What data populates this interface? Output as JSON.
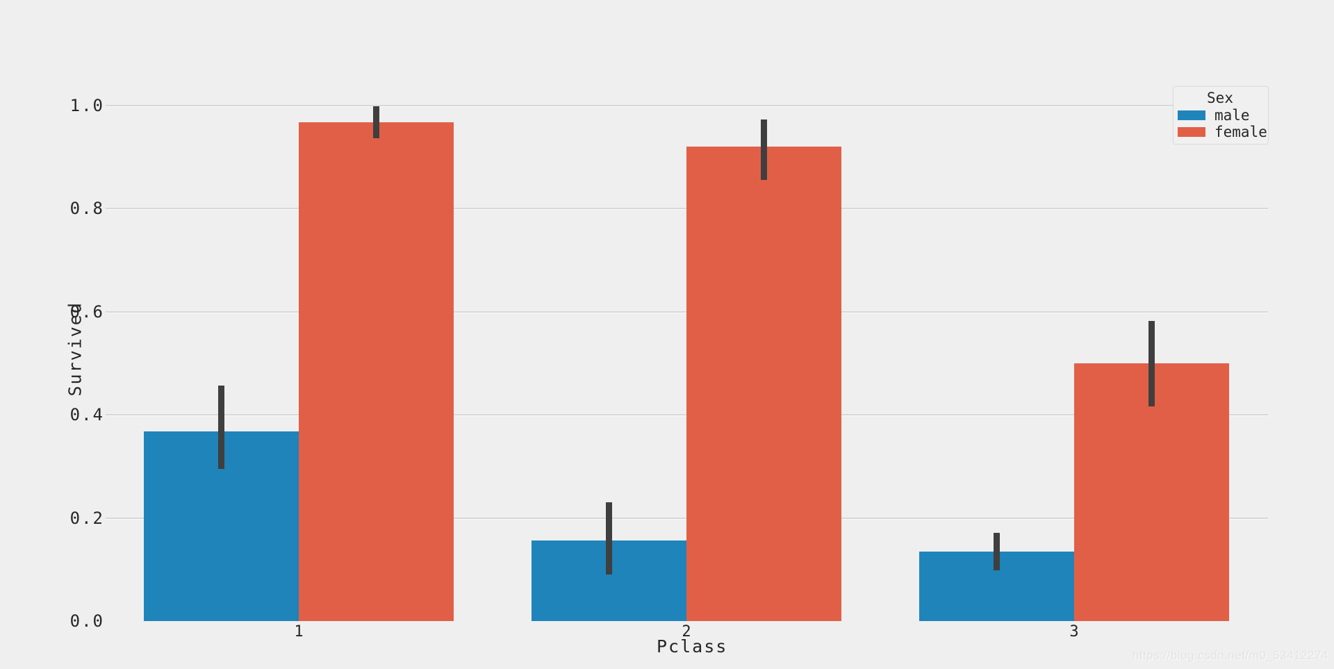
{
  "chart_data": {
    "type": "bar",
    "title": "",
    "xlabel": "Pclass",
    "ylabel": "Survived",
    "categories": [
      "1",
      "2",
      "3"
    ],
    "series": [
      {
        "name": "male",
        "color": "#1f84ba",
        "values": [
          0.368,
          0.157,
          0.135
        ],
        "error_bars": [
          [
            0.295,
            0.457
          ],
          [
            0.09,
            0.23
          ],
          [
            0.098,
            0.171
          ]
        ]
      },
      {
        "name": "female",
        "color": "#e25f47",
        "values": [
          0.968,
          0.921,
          0.5
        ],
        "error_bars": [
          [
            0.937,
            0.999
          ],
          [
            0.856,
            0.973
          ],
          [
            0.416,
            0.582
          ]
        ]
      }
    ],
    "legend": {
      "title": "Sex",
      "entries": [
        "male",
        "female"
      ],
      "position": "upper-right"
    },
    "y_ticks": [
      {
        "value": 0.0,
        "label": "0.0"
      },
      {
        "value": 0.2,
        "label": "0.2"
      },
      {
        "value": 0.4,
        "label": "0.4"
      },
      {
        "value": 0.6,
        "label": "0.6"
      },
      {
        "value": 0.8,
        "label": "0.8"
      },
      {
        "value": 1.0,
        "label": "1.0"
      }
    ],
    "ylim": [
      0.0,
      1.0
    ],
    "grid": true,
    "colors": {
      "background": "#efefef",
      "gridline": "#d8d8d8",
      "errorbar": "#3f3f3f",
      "text": "#262626"
    }
  },
  "watermark": "https://blog.csdn.net/m0_53412274"
}
